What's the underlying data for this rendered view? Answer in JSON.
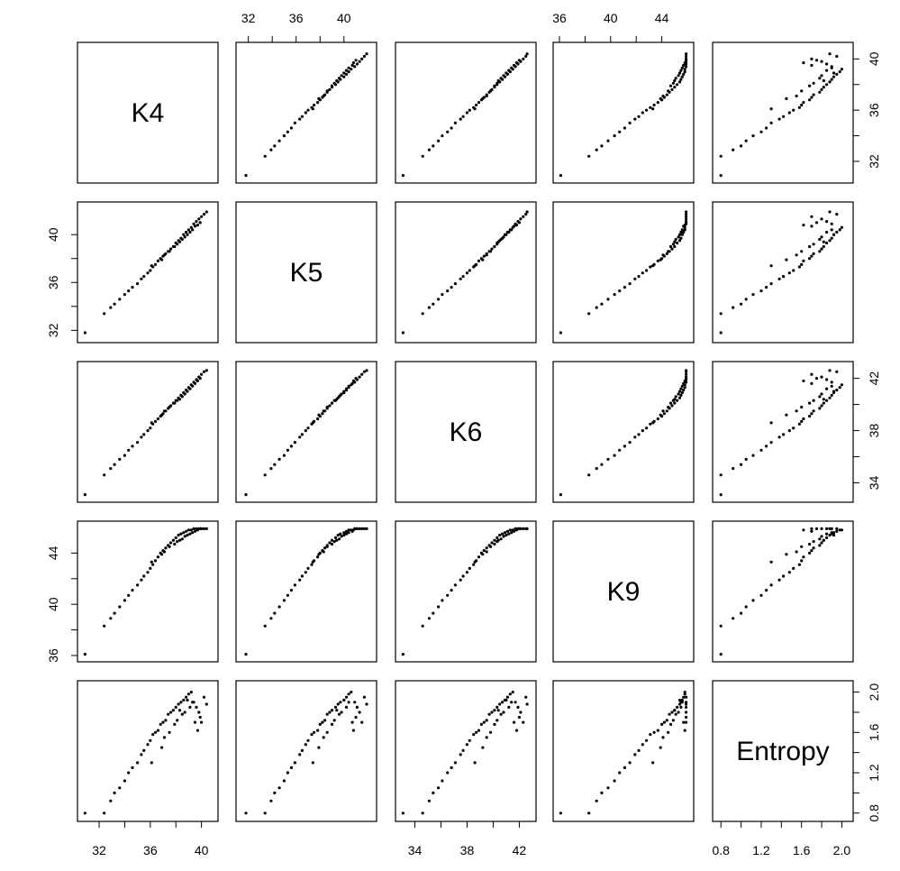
{
  "chart_data": {
    "type": "scatter",
    "variables": [
      {
        "name": "K4",
        "range": [
          30.8,
          40.8
        ],
        "ticks": [
          32,
          36,
          40
        ]
      },
      {
        "name": "K5",
        "range": [
          31.5,
          42.2
        ],
        "ticks": [
          32,
          36,
          40
        ]
      },
      {
        "name": "K6",
        "range": [
          33.0,
          42.8
        ],
        "ticks": [
          34,
          38,
          42
        ]
      },
      {
        "name": "K9",
        "range": [
          36.0,
          46.0
        ],
        "ticks": [
          36,
          40,
          44
        ]
      },
      {
        "name": "Entropy",
        "range": [
          0.78,
          2.05
        ],
        "ticks": [
          "0.8",
          "1.2",
          "1.6",
          "2.0"
        ]
      }
    ],
    "tick_text": {
      "K4_top": [
        "32",
        "36",
        "40"
      ],
      "K9_top": [
        "36",
        "40",
        "44"
      ],
      "K4_bottom": [
        "32",
        "36",
        "40"
      ],
      "K6_bottom": [
        "34",
        "38",
        "42"
      ],
      "Entropy_bottom": [
        "0.8",
        "1.2",
        "1.6",
        "2.0"
      ],
      "K4_right": [
        "32",
        "36",
        "40"
      ],
      "K6_right": [
        "34",
        "38",
        "42"
      ],
      "Entropy_right": [
        "0.8",
        "1.2",
        "1.6",
        "2.0"
      ],
      "K5_left": [
        "32",
        "36",
        "40"
      ],
      "K9_left": [
        "36",
        "40",
        "44"
      ]
    },
    "points": {
      "K4": [
        30.9,
        32.4,
        32.9,
        33.2,
        33.6,
        34.0,
        34.3,
        34.6,
        35.0,
        35.3,
        35.5,
        35.8,
        36.0,
        36.2,
        36.4,
        36.6,
        36.8,
        37.0,
        37.2,
        37.4,
        37.6,
        37.8,
        38.0,
        38.2,
        38.4,
        38.6,
        38.8,
        39.0,
        39.2,
        39.4,
        39.6,
        39.8,
        40.0,
        40.2,
        40.4,
        36.1,
        36.9,
        37.5,
        38.1,
        38.7,
        39.3,
        39.9,
        37.1,
        37.9,
        38.5,
        39.1,
        39.7,
        38.3,
        38.9,
        39.5
      ],
      "K5": [
        31.8,
        33.4,
        33.9,
        34.2,
        34.6,
        35.0,
        35.3,
        35.6,
        35.9,
        36.3,
        36.5,
        36.8,
        37.0,
        37.3,
        37.5,
        37.8,
        38.0,
        38.2,
        38.4,
        38.6,
        38.8,
        39.0,
        39.3,
        39.5,
        39.7,
        40.0,
        40.2,
        40.4,
        40.6,
        40.9,
        41.1,
        41.3,
        41.5,
        41.7,
        41.9,
        37.4,
        37.9,
        38.6,
        39.2,
        39.8,
        40.4,
        41.0,
        38.3,
        39.0,
        39.6,
        40.2,
        40.8,
        39.4,
        40.0,
        40.7
      ],
      "K6": [
        33.1,
        34.6,
        35.1,
        35.4,
        35.8,
        36.1,
        36.5,
        36.8,
        37.1,
        37.5,
        37.7,
        38.0,
        38.2,
        38.5,
        38.7,
        38.9,
        39.1,
        39.3,
        39.5,
        39.7,
        39.9,
        40.1,
        40.3,
        40.5,
        40.7,
        40.9,
        41.1,
        41.3,
        41.5,
        41.7,
        41.9,
        42.1,
        42.3,
        42.5,
        42.6,
        38.6,
        39.2,
        39.8,
        40.3,
        40.8,
        41.4,
        42.0,
        39.5,
        40.1,
        40.6,
        41.2,
        41.8,
        40.4,
        41.0,
        41.6
      ],
      "K9": [
        36.1,
        38.3,
        38.9,
        39.3,
        39.8,
        40.3,
        40.7,
        41.1,
        41.5,
        41.9,
        42.2,
        42.5,
        42.8,
        43.1,
        43.4,
        43.7,
        44.0,
        44.2,
        44.4,
        44.6,
        44.8,
        45.0,
        45.2,
        45.4,
        45.5,
        45.6,
        45.7,
        45.8,
        45.8,
        45.9,
        45.9,
        45.9,
        45.9,
        45.9,
        45.9,
        43.3,
        43.9,
        44.5,
        44.9,
        45.3,
        45.6,
        45.9,
        44.1,
        44.7,
        45.1,
        45.5,
        45.8,
        45.0,
        45.4,
        45.7
      ],
      "Entropy": [
        0.8,
        0.8,
        0.92,
        1.0,
        1.05,
        1.12,
        1.2,
        1.25,
        1.3,
        1.38,
        1.42,
        1.48,
        1.52,
        1.58,
        1.6,
        1.62,
        1.68,
        1.7,
        1.72,
        1.78,
        1.8,
        1.82,
        1.85,
        1.88,
        1.9,
        1.92,
        1.95,
        1.98,
        2.0,
        1.9,
        1.85,
        1.8,
        1.7,
        1.95,
        1.88,
        1.3,
        1.45,
        1.6,
        1.72,
        1.8,
        1.9,
        1.75,
        1.55,
        1.68,
        1.78,
        1.85,
        1.62,
        1.82,
        1.92,
        1.7
      ]
    }
  }
}
